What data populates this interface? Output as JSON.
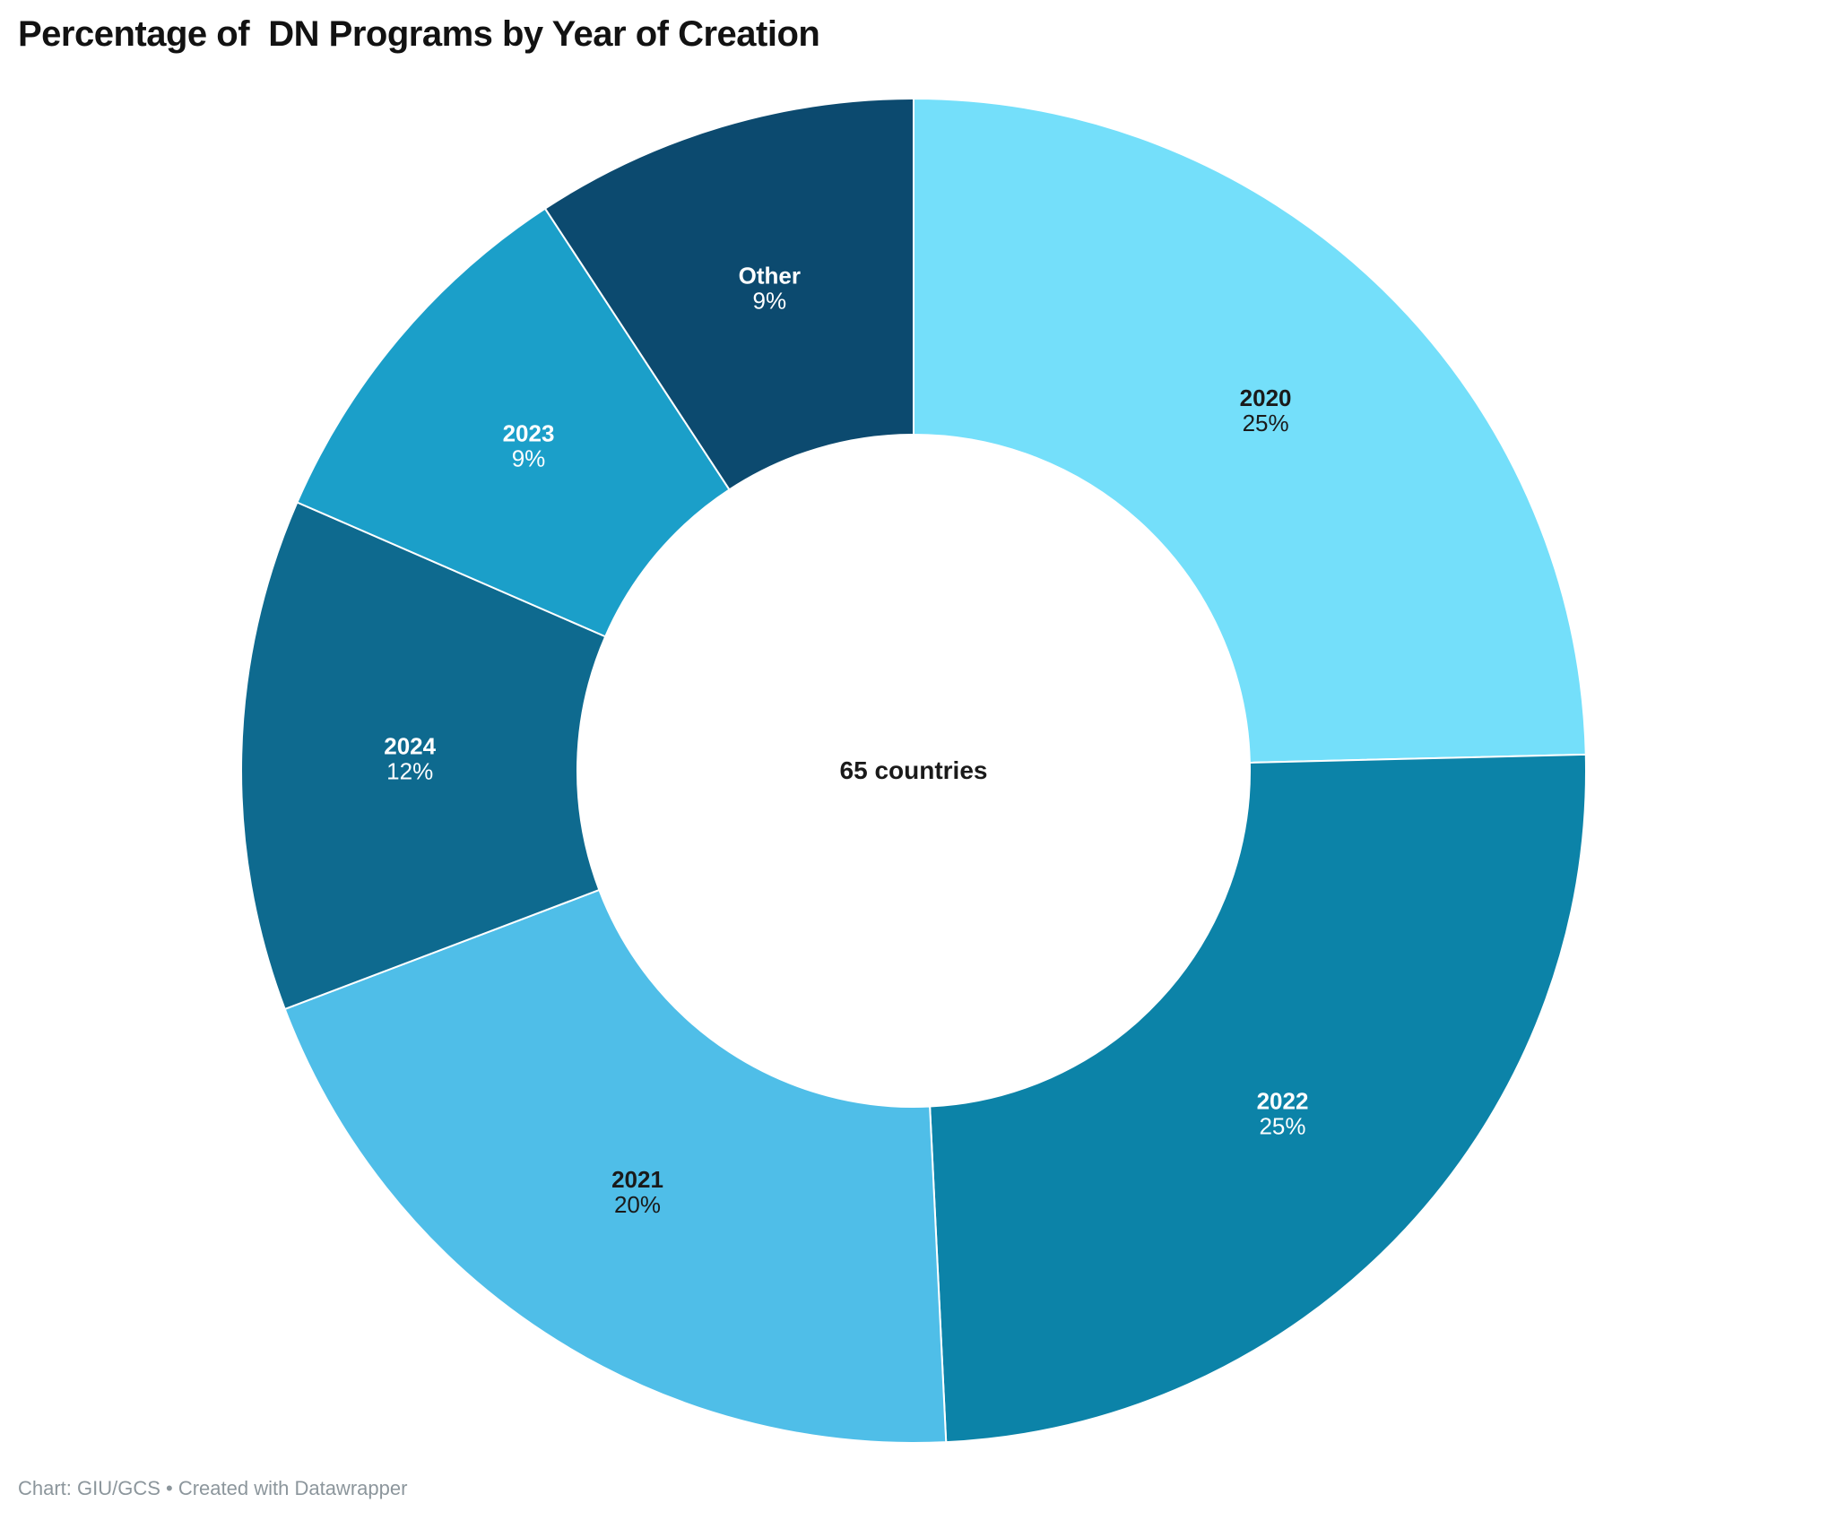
{
  "title": "Percentage of  DN Programs by Year of Creation",
  "footer": "Chart: GIU/GCS • Created with Datawrapper",
  "chart_data": {
    "type": "pie",
    "subtype": "donut",
    "title": "Percentage of  DN Programs by Year of Creation",
    "center_label": "65 countries",
    "total": 65,
    "start_angle_deg": 0,
    "direction": "clockwise",
    "inner_radius_ratio": 0.5,
    "legend_position": "none",
    "slices": [
      {
        "label": "2020",
        "value": 16,
        "pct_label": "25%",
        "color": "#74DFFA",
        "text_color": "#1a1a1a"
      },
      {
        "label": "2022",
        "value": 16,
        "pct_label": "25%",
        "color": "#0C83A8",
        "text_color": "#ffffff"
      },
      {
        "label": "2021",
        "value": 13,
        "pct_label": "20%",
        "color": "#4FBEE8",
        "text_color": "#1a1a1a"
      },
      {
        "label": "2024",
        "value": 8,
        "pct_label": "12%",
        "color": "#0E6A8F",
        "text_color": "#ffffff"
      },
      {
        "label": "2023",
        "value": 6,
        "pct_label": "9%",
        "color": "#1B9FC9",
        "text_color": "#ffffff"
      },
      {
        "label": "Other",
        "value": 6,
        "pct_label": "9%",
        "color": "#0C4A6F",
        "text_color": "#ffffff"
      }
    ]
  }
}
